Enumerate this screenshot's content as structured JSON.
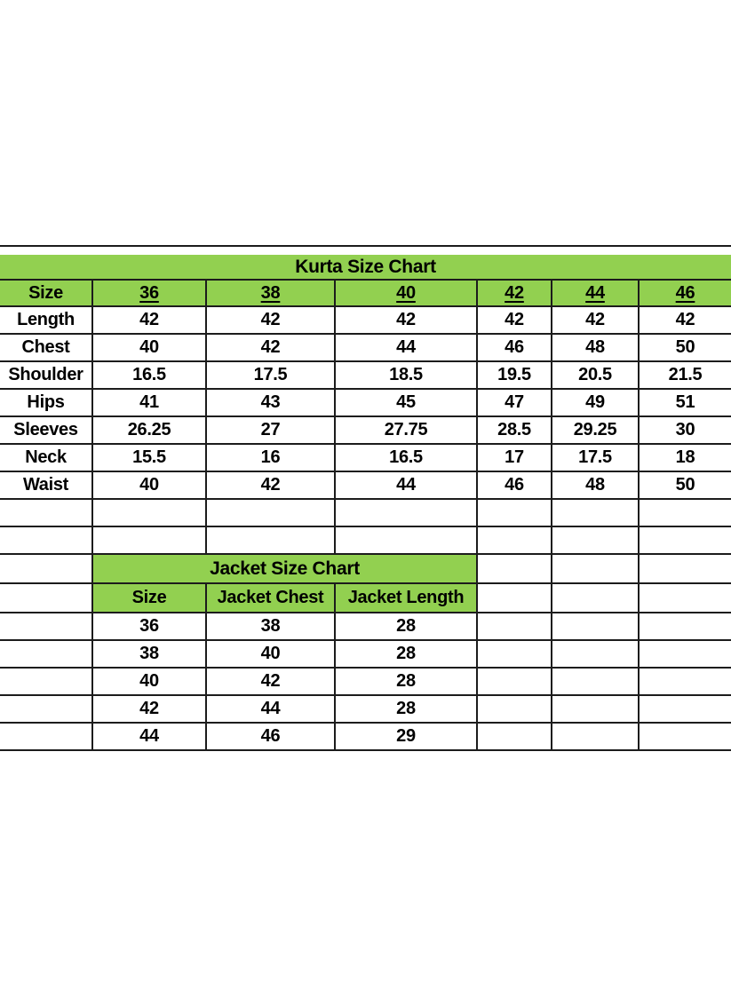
{
  "colors": {
    "header_green": "#92d050",
    "grid_line": "#1c1c1c",
    "text": "#000000",
    "page_background": "#ffffff"
  },
  "chart_data": [
    {
      "type": "table",
      "title": "Kurta Size Chart",
      "columns": [
        "Size",
        "36",
        "38",
        "40",
        "42",
        "44",
        "46"
      ],
      "rows": [
        [
          "Length",
          "42",
          "42",
          "42",
          "42",
          "42",
          "42"
        ],
        [
          "Chest",
          "40",
          "42",
          "44",
          "46",
          "48",
          "50"
        ],
        [
          "Shoulder",
          "16.5",
          "17.5",
          "18.5",
          "19.5",
          "20.5",
          "21.5"
        ],
        [
          "Hips",
          "41",
          "43",
          "45",
          "47",
          "49",
          "51"
        ],
        [
          "Sleeves",
          "26.25",
          "27",
          "27.75",
          "28.5",
          "29.25",
          "30"
        ],
        [
          "Neck",
          "15.5",
          "16",
          "16.5",
          "17",
          "17.5",
          "18"
        ],
        [
          "Waist",
          "40",
          "42",
          "44",
          "46",
          "48",
          "50"
        ]
      ]
    },
    {
      "type": "table",
      "title": "Jacket Size Chart",
      "columns": [
        "Size",
        "Jacket Chest",
        "Jacket Length"
      ],
      "rows": [
        [
          "36",
          "38",
          "28"
        ],
        [
          "38",
          "40",
          "28"
        ],
        [
          "40",
          "42",
          "28"
        ],
        [
          "42",
          "44",
          "28"
        ],
        [
          "44",
          "46",
          "29"
        ]
      ]
    }
  ]
}
